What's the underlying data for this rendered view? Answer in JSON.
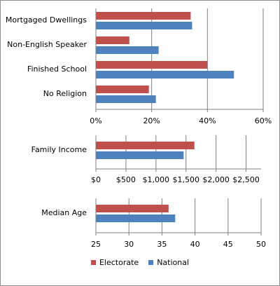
{
  "chart_data": [
    {
      "type": "bar",
      "orientation": "horizontal",
      "categories": [
        "Mortgaged Dwellings",
        "Non-English Speaker",
        "Finished School",
        "No Religion"
      ],
      "series": [
        {
          "name": "Electorate",
          "values": [
            34,
            12,
            40,
            19
          ]
        },
        {
          "name": "National",
          "values": [
            34.5,
            22.5,
            49.5,
            21.5
          ]
        }
      ],
      "xlim": [
        0,
        60
      ],
      "xticks": [
        "0%",
        "20%",
        "40%",
        "60%"
      ],
      "xtick_values": [
        0,
        20,
        40,
        60
      ],
      "grid": true
    },
    {
      "type": "bar",
      "orientation": "horizontal",
      "categories": [
        "Family Income"
      ],
      "series": [
        {
          "name": "Electorate",
          "values": [
            1640
          ]
        },
        {
          "name": "National",
          "values": [
            1460
          ]
        }
      ],
      "xlim": [
        0,
        2750
      ],
      "xticks": [
        "$0",
        "$500",
        "$1,000",
        "$1,500",
        "$2,000",
        "$2,500"
      ],
      "xtick_values": [
        0,
        500,
        1000,
        1500,
        2000,
        2500
      ],
      "grid": true
    },
    {
      "type": "bar",
      "orientation": "horizontal",
      "categories": [
        "Median Age"
      ],
      "series": [
        {
          "name": "Electorate",
          "values": [
            36
          ]
        },
        {
          "name": "National",
          "values": [
            37
          ]
        }
      ],
      "xlim": [
        25,
        50
      ],
      "xticks": [
        "25",
        "30",
        "35",
        "40",
        "45",
        "50"
      ],
      "xtick_values": [
        25,
        30,
        35,
        40,
        45,
        50
      ],
      "grid": true
    }
  ],
  "legend": {
    "position": "bottom",
    "items": [
      {
        "label": "Electorate",
        "color": "#c0504d"
      },
      {
        "label": "National",
        "color": "#4f81bd"
      }
    ]
  },
  "colors": {
    "electorate": "#c0504d",
    "national": "#4f81bd",
    "grid": "#7f7f7f"
  }
}
